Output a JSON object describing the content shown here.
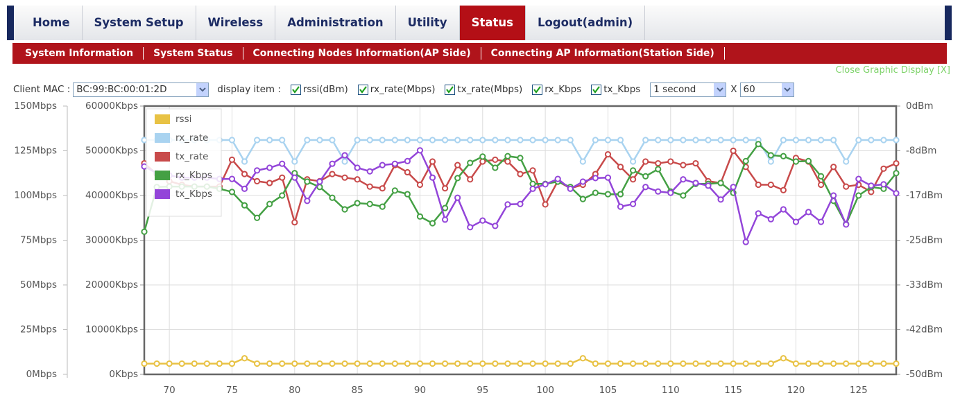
{
  "nav": {
    "tabs": [
      "Home",
      "System Setup",
      "Wireless",
      "Administration",
      "Utility",
      "Status",
      "Logout(admin)"
    ],
    "active": 5
  },
  "subnav": [
    "System Information",
    "System Status",
    "Connecting Nodes Information(AP Side)",
    "Connecting AP Information(Station Side)"
  ],
  "close_link": "Close Graphic Display [X]",
  "controls": {
    "client_mac_label": "Client MAC :",
    "client_mac": "BC:99:BC:00:01:2D",
    "display_label": "display item :",
    "items": [
      "rssi(dBm)",
      "rx_rate(Mbps)",
      "tx_rate(Mbps)",
      "rx_Kbps",
      "tx_Kbps"
    ],
    "interval": "1 second",
    "times_label": "X",
    "count": "60"
  },
  "chart_data": {
    "type": "line",
    "legend": "upper left",
    "grid": true,
    "x": [
      68,
      69,
      70,
      71,
      72,
      73,
      74,
      75,
      76,
      77,
      78,
      79,
      80,
      81,
      82,
      83,
      84,
      85,
      86,
      87,
      88,
      89,
      90,
      91,
      92,
      93,
      94,
      95,
      96,
      97,
      98,
      99,
      100,
      101,
      102,
      103,
      104,
      105,
      106,
      107,
      108,
      109,
      110,
      111,
      112,
      113,
      114,
      115,
      116,
      117,
      118,
      119,
      120,
      121,
      122,
      123,
      124,
      125,
      126,
      127,
      128
    ],
    "xlim": [
      68,
      128
    ],
    "xticks": [
      70,
      75,
      80,
      85,
      90,
      95,
      100,
      105,
      110,
      115,
      120,
      125
    ],
    "ylim": [
      0,
      150
    ],
    "yticks": [
      {
        "value": 0,
        "label": "0Mbps"
      },
      {
        "value": 25,
        "label": "25Mbps"
      },
      {
        "value": 50,
        "label": "50Mbps"
      },
      {
        "value": 75,
        "label": "75Mbps"
      },
      {
        "value": 100,
        "label": "100Mbps"
      },
      {
        "value": 125,
        "label": "125Mbps"
      },
      {
        "value": 150,
        "label": "150Mbps"
      }
    ],
    "y3lim": [
      0,
      60000
    ],
    "y3ticks": [
      {
        "value": 0,
        "label": "0Kbps"
      },
      {
        "value": 10000,
        "label": "10000Kbps"
      },
      {
        "value": 20000,
        "label": "20000Kbps"
      },
      {
        "value": 30000,
        "label": "30000Kbps"
      },
      {
        "value": 40000,
        "label": "40000Kbps"
      },
      {
        "value": 50000,
        "label": "50000Kbps"
      },
      {
        "value": 60000,
        "label": "60000Kbps"
      }
    ],
    "y2lim": [
      -50,
      0
    ],
    "y2ticks": [
      {
        "value": -50,
        "label": "-50dBm"
      },
      {
        "value": -41.67,
        "label": "-42dBm"
      },
      {
        "value": -33.33,
        "label": "-33dBm"
      },
      {
        "value": -25,
        "label": "-25dBm"
      },
      {
        "value": -16.67,
        "label": "-17dBm"
      },
      {
        "value": -8.33,
        "label": "-8dBm"
      },
      {
        "value": 0,
        "label": "0dBm"
      }
    ],
    "series": [
      {
        "name": "rssi",
        "color": "#e8c244",
        "axis": "y2",
        "values": [
          -48,
          -48,
          -48,
          -48,
          -48,
          -48,
          -48,
          -48,
          -47,
          -48,
          -48,
          -48,
          -48,
          -48,
          -48,
          -48,
          -48,
          -48,
          -48,
          -48,
          -48,
          -48,
          -48,
          -48,
          -48,
          -48,
          -48,
          -48,
          -48,
          -48,
          -48,
          -48,
          -48,
          -48,
          -48,
          -47,
          -48,
          -48,
          -48,
          -48,
          -48,
          -48,
          -48,
          -48,
          -48,
          -48,
          -48,
          -48,
          -48,
          -48,
          -48,
          -47,
          -48,
          -48,
          -48,
          -48,
          -48,
          -48,
          -48,
          -48,
          -48
        ]
      },
      {
        "name": "rx_rate",
        "color": "#a9d3f0",
        "values": [
          131,
          131,
          131,
          131,
          131,
          131,
          131,
          131,
          119,
          131,
          131,
          131,
          119,
          131,
          131,
          131,
          119,
          131,
          131,
          131,
          131,
          131,
          131,
          131,
          131,
          131,
          131,
          131,
          131,
          131,
          131,
          131,
          131,
          131,
          131,
          119,
          131,
          131,
          131,
          119,
          131,
          131,
          131,
          131,
          131,
          131,
          131,
          131,
          131,
          131,
          119,
          131,
          131,
          131,
          131,
          131,
          119,
          131,
          131,
          131,
          131
        ]
      },
      {
        "name": "tx_rate",
        "color": "#c84a4a",
        "values": [
          118,
          112,
          108,
          106,
          105,
          105,
          105,
          120,
          112,
          108,
          107,
          110,
          85,
          109,
          108,
          112,
          110,
          109,
          105,
          104,
          117,
          113,
          106,
          119,
          104,
          117,
          109,
          119,
          120,
          119,
          112,
          114,
          95,
          108,
          104,
          106,
          112,
          123,
          116,
          109,
          119,
          118,
          119,
          117,
          118,
          108,
          107,
          125,
          116,
          106,
          106,
          103,
          121,
          119,
          106,
          116,
          105,
          106,
          102,
          115,
          118
        ]
      },
      {
        "name": "rx_Kbps",
        "color": "#44a044",
        "axis": "y3",
        "values": [
          31900,
          41900,
          42000,
          42000,
          42000,
          42000,
          41500,
          40800,
          37800,
          35000,
          38100,
          40000,
          45000,
          43100,
          41900,
          39500,
          36900,
          38300,
          38100,
          37500,
          41100,
          40300,
          35300,
          33800,
          37200,
          43900,
          47300,
          48700,
          46200,
          48800,
          48400,
          42600,
          42600,
          43100,
          41900,
          39200,
          40600,
          40300,
          40300,
          45600,
          44300,
          45900,
          40900,
          40000,
          42600,
          42600,
          42800,
          40600,
          47700,
          51500,
          49000,
          48800,
          47600,
          47700,
          44300,
          38800,
          33600,
          40000,
          41900,
          41500,
          45000
        ]
      },
      {
        "name": "tx_Kbps",
        "color": "#9345d9",
        "axis": "y3",
        "values": [
          46500,
          45000,
          44500,
          44000,
          44000,
          44000,
          43700,
          43700,
          41500,
          45600,
          46200,
          47100,
          44000,
          38800,
          43100,
          47100,
          49000,
          46200,
          45400,
          46800,
          47100,
          47700,
          50100,
          44000,
          34600,
          39500,
          32900,
          34400,
          33200,
          38000,
          38100,
          41500,
          42500,
          43700,
          41500,
          43100,
          43900,
          44000,
          37500,
          38100,
          41900,
          40900,
          40600,
          43600,
          42800,
          42200,
          39100,
          41900,
          29600,
          36000,
          34700,
          36900,
          34100,
          36300,
          34100,
          40000,
          33500,
          43700,
          42200,
          42500,
          40500
        ]
      }
    ]
  }
}
